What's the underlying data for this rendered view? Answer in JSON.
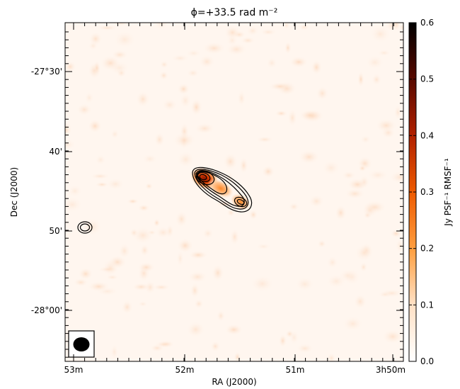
{
  "chart_data": {
    "type": "heatmap",
    "title": "ϕ=+33.5 rad m⁻²",
    "xlabel": "RA (J2000)",
    "ylabel": "Dec (J2000)",
    "x_ticks": [
      "53m",
      "52m",
      "51m",
      "3h50m"
    ],
    "y_ticks": [
      "-27°30'",
      "40'",
      "50'",
      "-28°00'"
    ],
    "colorbar": {
      "label": "Jy PSF⁻¹ RMSF⁻¹",
      "range": [
        0.0,
        0.6
      ],
      "ticks": [
        "0.0",
        "0.1",
        "0.2",
        "0.3",
        "0.4",
        "0.5",
        "0.6"
      ],
      "colormap": "gist_heat_r",
      "colors": [
        "#ffffff",
        "#ffe0c4",
        "#ff9f40",
        "#ee5a00",
        "#b02000",
        "#5a0a00",
        "#000000"
      ]
    },
    "sources": [
      {
        "ra_min": 51.78,
        "dec_arcmin": -42.8,
        "peak": 0.46
      },
      {
        "ra_min": 51.58,
        "dec_arcmin": -44.5,
        "peak": 0.12
      },
      {
        "ra_min": 51.42,
        "dec_arcmin": -45.8,
        "peak": 0.22
      }
    ],
    "contours": "total intensity, black",
    "contour_sources": [
      {
        "ra_min": 52.88,
        "dec_arcmin": -49.8
      }
    ],
    "beam": "filled ellipse, lower-left corner",
    "grid": false
  }
}
